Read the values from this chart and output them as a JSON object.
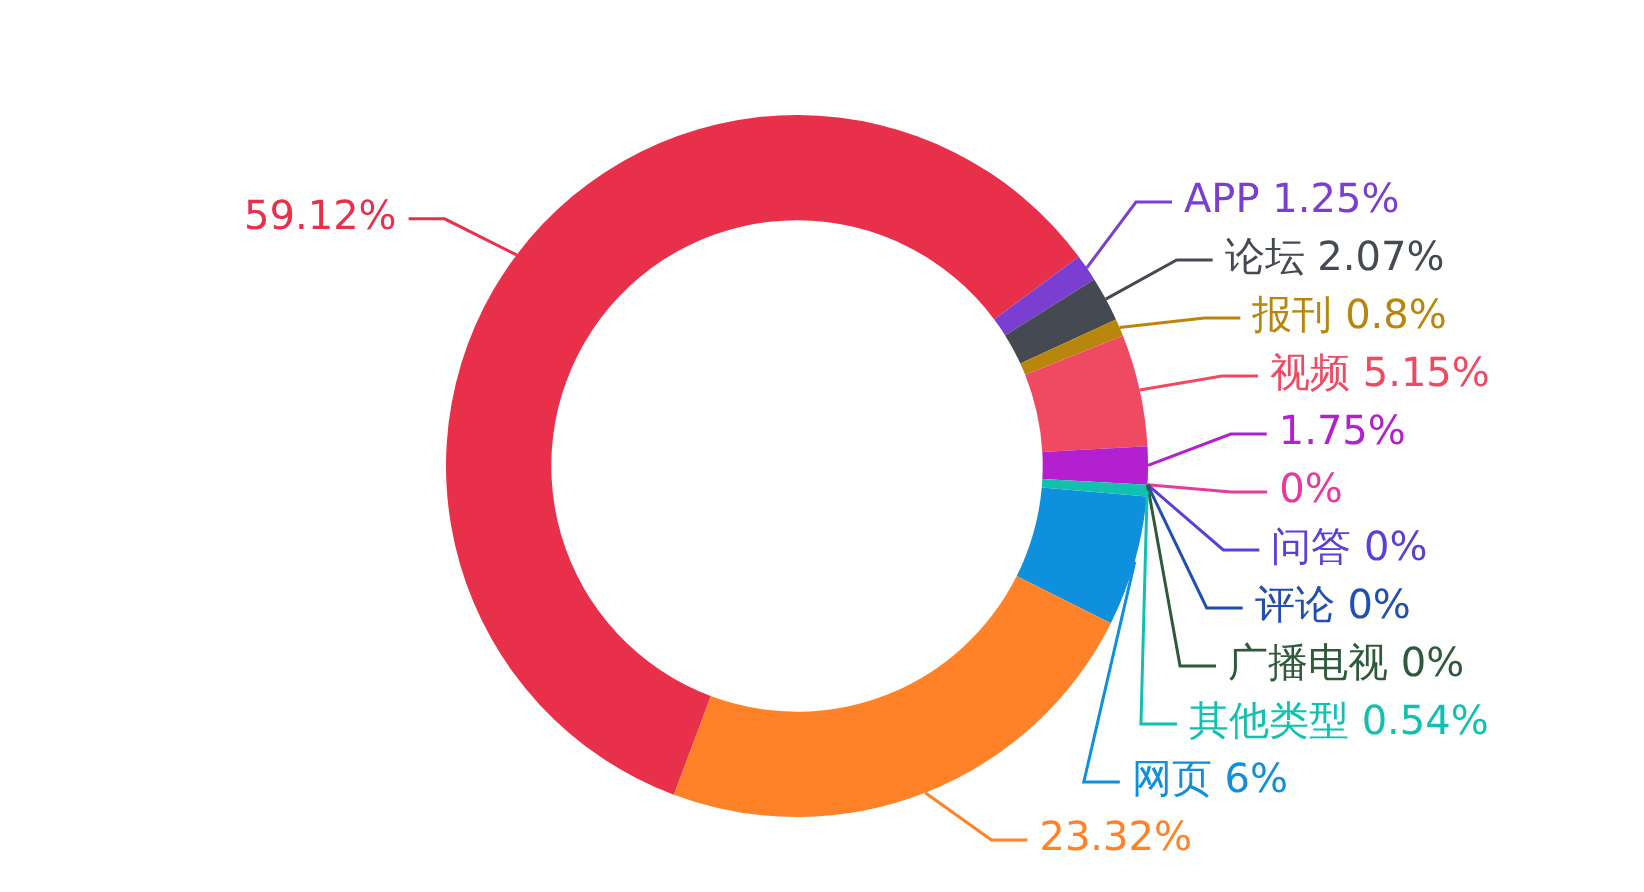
{
  "chart_data": {
    "type": "donut",
    "categories": [
      "网页",
      null,
      null,
      "APP",
      "论坛",
      "报刊",
      "视频",
      null,
      null,
      "问答",
      "评论",
      "广播电视",
      "其他类型"
    ],
    "values": [
      6,
      23.32,
      59.12,
      1.25,
      2.07,
      0.8,
      5.15,
      1.75,
      0,
      0,
      0,
      0,
      0.54
    ],
    "value_labels": [
      "6%",
      "23.32%",
      "59.12%",
      "1.25%",
      "2.07%",
      "0.8%",
      "5.15%",
      "1.75%",
      "0%",
      "0%",
      "0%",
      "0%",
      "0.54%"
    ],
    "colors": [
      "#0e90dc",
      "#ff8128",
      "#e8304a",
      "#7a3fd0",
      "#454a52",
      "#b8860b",
      "#f04a62",
      "#b220d0",
      "#e8399c",
      "#5a3fd8",
      "#1f4fb0",
      "#2f5a3a",
      "#12c0b0"
    ],
    "legend": false
  }
}
